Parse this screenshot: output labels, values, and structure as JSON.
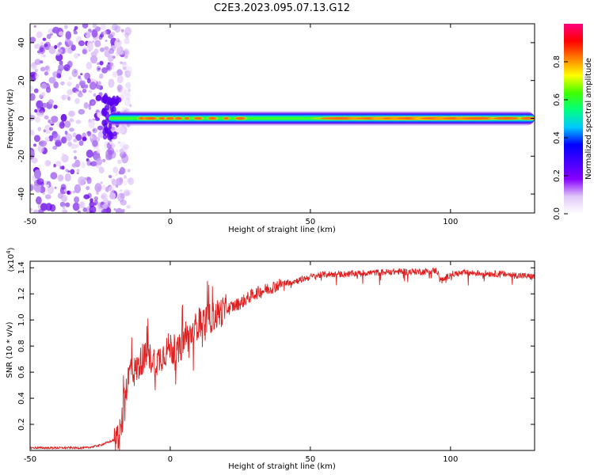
{
  "figure_title": "C2E3.2023.095.07.13.G12",
  "chart_data": [
    {
      "type": "heatmap",
      "name": "spectrogram",
      "title": "C2E3.2023.095.07.13.G12",
      "xlabel": "Height of straight line (km)",
      "ylabel": "Frequency (Hz)",
      "xlim": [
        -50,
        130
      ],
      "ylim": [
        -50,
        50
      ],
      "x_ticks": [
        "-50",
        "0",
        "50",
        "100"
      ],
      "x_tick_values": [
        -50,
        0,
        50,
        100
      ],
      "y_ticks": [
        "-40",
        "-20",
        "0",
        "20",
        "40"
      ],
      "y_tick_values": [
        -40,
        -20,
        0,
        20,
        40
      ],
      "colorbar": {
        "label": "Normalized spectral amplitude",
        "range": [
          0.0,
          1.0
        ],
        "ticks": [
          "0.0",
          "0.2",
          "0.4",
          "0.6",
          "0.8"
        ],
        "tick_values": [
          0.0,
          0.2,
          0.4,
          0.6,
          0.8
        ],
        "colors": [
          "#ffffff",
          "#e0c8f8",
          "#8800ff",
          "#4400ff",
          "#0000ff",
          "#00c8ff",
          "#00ff80",
          "#40ff00",
          "#ffff00",
          "#ff8000",
          "#ff0000",
          "#ff0080"
        ]
      },
      "noise_region_x": [
        -50,
        -20
      ],
      "signal_band": {
        "center_hz": 0,
        "x_start": -22,
        "x_end": 130,
        "half_width_hz": 3,
        "hot_spots_x": [
          -10,
          -7,
          -3,
          0,
          3,
          6,
          10,
          15,
          20,
          25,
          62,
          75,
          80,
          85,
          88,
          95,
          98,
          105,
          110,
          120,
          128
        ]
      }
    },
    {
      "type": "line",
      "name": "snr",
      "xlabel": "Height of straight line (km)",
      "ylabel": "SNR (10 * v/v)",
      "y_multiplier": "(x10",
      "y_multiplier_exp": "4",
      "y_multiplier_close": ")",
      "xlim": [
        -50,
        130
      ],
      "ylim": [
        0.0,
        1.45
      ],
      "x_ticks": [
        "-50",
        "0",
        "50",
        "100"
      ],
      "x_tick_values": [
        -50,
        0,
        50,
        100
      ],
      "y_ticks": [
        "0.2",
        "0.4",
        "0.6",
        "0.8",
        "1.0",
        "1.2",
        "1.4"
      ],
      "y_tick_values": [
        0.2,
        0.4,
        0.6,
        0.8,
        1.0,
        1.2,
        1.4
      ],
      "line_color": "#e02020",
      "series": [
        {
          "name": "SNR",
          "x": [
            -50,
            -30,
            -25,
            -20,
            -18,
            -17,
            -16,
            -15,
            -14,
            -13,
            -12,
            -10,
            -8,
            -5,
            -2,
            0,
            2,
            5,
            8,
            10,
            13,
            15,
            18,
            20,
            25,
            30,
            35,
            40,
            45,
            50,
            55,
            60,
            70,
            80,
            90,
            95,
            97,
            100,
            105,
            110,
            120,
            130
          ],
          "y": [
            0.02,
            0.02,
            0.04,
            0.08,
            0.12,
            0.25,
            0.45,
            0.55,
            0.65,
            0.6,
            0.62,
            0.7,
            0.72,
            0.68,
            0.75,
            0.8,
            0.72,
            0.85,
            0.9,
            0.98,
            1.0,
            1.02,
            1.06,
            1.08,
            1.13,
            1.2,
            1.24,
            1.28,
            1.3,
            1.33,
            1.35,
            1.35,
            1.36,
            1.37,
            1.37,
            1.38,
            1.3,
            1.35,
            1.36,
            1.36,
            1.35,
            1.33
          ]
        }
      ]
    }
  ]
}
